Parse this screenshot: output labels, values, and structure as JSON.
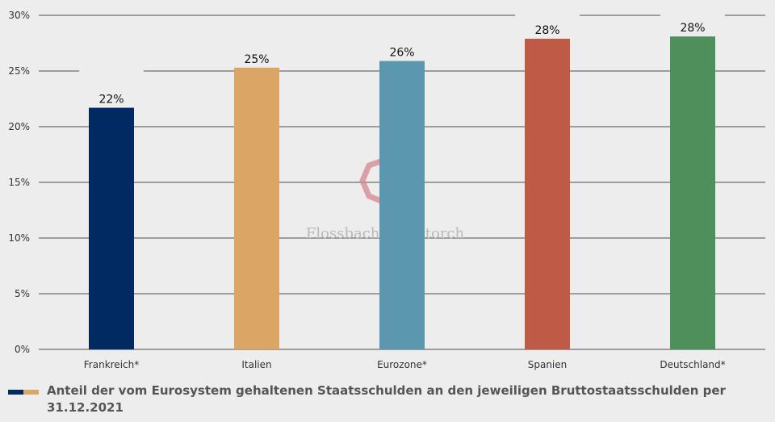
{
  "chart_data": {
    "type": "bar",
    "categories": [
      "Frankreich*",
      "Italien",
      "Eurozone*",
      "Spanien",
      "Deutschland*"
    ],
    "values": [
      21.7,
      25.3,
      25.9,
      27.9,
      28.1
    ],
    "data_labels": [
      "22%",
      "25%",
      "26%",
      "28%",
      "28%"
    ],
    "colors": [
      "#002a61",
      "#dba665",
      "#5b98b0",
      "#bf5a47",
      "#4f8f5c"
    ],
    "ylim": [
      0,
      30
    ],
    "yticks": [
      0,
      5,
      10,
      15,
      20,
      25,
      30
    ],
    "ytick_labels": [
      "0%",
      "5%",
      "10%",
      "15%",
      "20%",
      "25%",
      "30%"
    ],
    "grid": true,
    "legend_position": "bottom-left"
  },
  "legend": {
    "swatch_colors": [
      "#002a61",
      "#dba665"
    ],
    "text": "Anteil der vom Eurosystem gehaltenen Staatsschulden an den jeweiligen Bruttostaatsschulden per 31.12.2021"
  },
  "watermark": {
    "text": "Flossbach von Storch",
    "logo_color": "#d4868f"
  }
}
